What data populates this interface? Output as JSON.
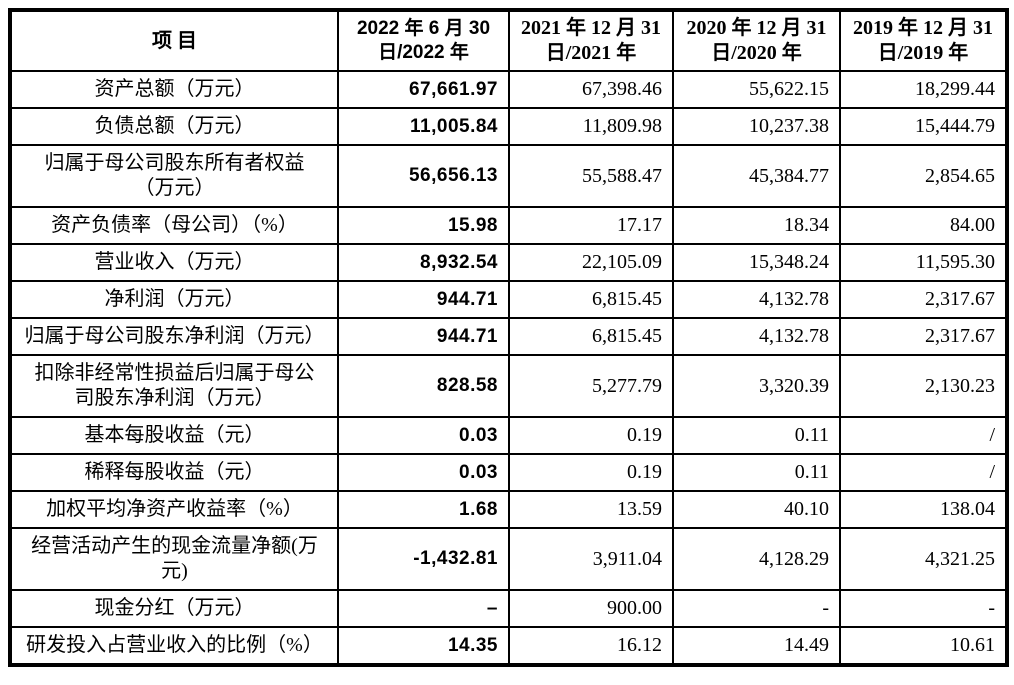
{
  "table": {
    "columns": [
      {
        "label": "项  目"
      },
      {
        "label": "2022 年 6 月 30\n日/2022 年"
      },
      {
        "label": "2021 年 12 月 31\n日/2021 年"
      },
      {
        "label": "2020 年 12 月 31\n日/2020 年"
      },
      {
        "label": "2019 年 12 月 31\n日/2019 年"
      }
    ],
    "rows": [
      {
        "label": "资产总额（万元）",
        "values": [
          "67,661.97",
          "67,398.46",
          "55,622.15",
          "18,299.44"
        ]
      },
      {
        "label": "负债总额（万元）",
        "values": [
          "11,005.84",
          "11,809.98",
          "10,237.38",
          "15,444.79"
        ]
      },
      {
        "label": "归属于母公司股东所有者权益\n（万元）",
        "values": [
          "56,656.13",
          "55,588.47",
          "45,384.77",
          "2,854.65"
        ]
      },
      {
        "label": "资产负债率（母公司）（%）",
        "values": [
          "15.98",
          "17.17",
          "18.34",
          "84.00"
        ]
      },
      {
        "label": "营业收入（万元）",
        "values": [
          "8,932.54",
          "22,105.09",
          "15,348.24",
          "11,595.30"
        ]
      },
      {
        "label": "净利润（万元）",
        "values": [
          "944.71",
          "6,815.45",
          "4,132.78",
          "2,317.67"
        ]
      },
      {
        "label": "归属于母公司股东净利润（万元）",
        "values": [
          "944.71",
          "6,815.45",
          "4,132.78",
          "2,317.67"
        ]
      },
      {
        "label": "扣除非经常性损益后归属于母公\n司股东净利润（万元）",
        "values": [
          "828.58",
          "5,277.79",
          "3,320.39",
          "2,130.23"
        ]
      },
      {
        "label": "基本每股收益（元）",
        "values": [
          "0.03",
          "0.19",
          "0.11",
          "/"
        ]
      },
      {
        "label": "稀释每股收益（元）",
        "values": [
          "0.03",
          "0.19",
          "0.11",
          "/"
        ]
      },
      {
        "label": "加权平均净资产收益率（%）",
        "values": [
          "1.68",
          "13.59",
          "40.10",
          "138.04"
        ]
      },
      {
        "label": "经营活动产生的现金流量净额(万\n元)",
        "values": [
          "-1,432.81",
          "3,911.04",
          "4,128.29",
          "4,321.25"
        ]
      },
      {
        "label": "现金分红（万元）",
        "values": [
          "–",
          "900.00",
          "-",
          "-"
        ]
      },
      {
        "label": "研发投入占营业收入的比例（%）",
        "values": [
          "14.35",
          "16.12",
          "14.49",
          "10.61"
        ]
      }
    ]
  }
}
